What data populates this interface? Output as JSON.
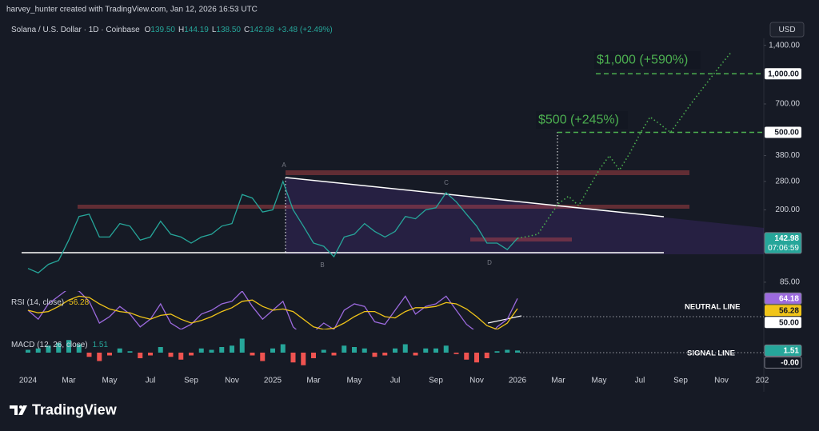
{
  "header": {
    "credit": "harvey_hunter created with TradingView.com, Jan 12, 2026 16:53 UTC",
    "currency": "USD"
  },
  "footer": {
    "logo": "TradingView"
  },
  "chart_data": [
    {
      "type": "line",
      "title": "Solana / U.S. Dollar · 1D · Coinbase",
      "ohlc": [
        {
          "label": "O",
          "value": "139.50"
        },
        {
          "label": "H",
          "value": "144.19"
        },
        {
          "label": "L",
          "value": "138.50"
        },
        {
          "label": "C",
          "value": "142.98"
        }
      ],
      "change": "+3.48 (+2.49%)",
      "log": true,
      "grid": false,
      "categories": [
        "2024",
        null,
        null,
        null,
        "Mar",
        null,
        null,
        null,
        "May",
        null,
        null,
        null,
        "Jul",
        null,
        null,
        null,
        "Sep",
        null,
        null,
        null,
        "Nov",
        null,
        null,
        null,
        "2025",
        null,
        null,
        null,
        "Mar",
        null,
        null,
        null,
        "May",
        null,
        null,
        null,
        "Jul",
        null,
        null,
        null,
        "Sep",
        null,
        null,
        null,
        "Nov",
        null,
        null,
        null,
        "2026",
        null,
        null,
        null,
        "Mar",
        null,
        null,
        null,
        "May",
        null,
        null,
        null,
        "Jul",
        null,
        null,
        null,
        "Sep",
        null,
        null,
        null,
        "Nov",
        null,
        null,
        null,
        "202"
      ],
      "ylim": [
        78,
        1520
      ],
      "yticks": [
        {
          "value": 85,
          "label": "85.00"
        },
        {
          "value": 200,
          "label": "200.00"
        },
        {
          "value": 280,
          "label": "280.00"
        },
        {
          "value": 380,
          "label": "380.00"
        },
        {
          "value": 700,
          "label": "700.00"
        },
        {
          "value": 1400,
          "label": "1,400.00"
        }
      ],
      "series": [
        {
          "color": "#26a69a",
          "style": "solid",
          "values": [
            100,
            95,
            105,
            110,
            140,
            185,
            190,
            145,
            145,
            170,
            165,
            140,
            145,
            175,
            150,
            145,
            135,
            145,
            150,
            165,
            170,
            240,
            230,
            195,
            200,
            280,
            200,
            165,
            135,
            130,
            115,
            145,
            150,
            170,
            155,
            145,
            155,
            185,
            180,
            200,
            205,
            245,
            220,
            190,
            165,
            135,
            135,
            125,
            142.98,
            null,
            null,
            null,
            null,
            null,
            null,
            null,
            null,
            null,
            null,
            null,
            null,
            null,
            null,
            null,
            null,
            null,
            null,
            null,
            null,
            null,
            null,
            null,
            null
          ]
        },
        {
          "color": "#4caf50",
          "style": "dotted",
          "values": [
            null,
            null,
            null,
            null,
            null,
            null,
            null,
            null,
            null,
            null,
            null,
            null,
            null,
            null,
            null,
            null,
            null,
            null,
            null,
            null,
            null,
            null,
            null,
            null,
            null,
            null,
            null,
            null,
            null,
            null,
            null,
            null,
            null,
            null,
            null,
            null,
            null,
            null,
            null,
            null,
            null,
            null,
            null,
            null,
            null,
            null,
            null,
            null,
            142.98,
            146,
            150,
            180,
            215,
            235,
            210,
            260,
            320,
            380,
            320,
            390,
            490,
            600,
            550,
            500,
            590,
            700,
            820,
            960,
            1120,
            1300,
            null,
            null,
            null
          ]
        }
      ],
      "value_tags": [
        {
          "value": 1000,
          "label": "1,000.00",
          "color": "#ffffff",
          "line": "dashed"
        },
        {
          "value": 500,
          "label": "500.00",
          "color": "#ffffff",
          "line": "dashed"
        },
        {
          "value": 142.98,
          "label": "142.98",
          "sublabel": "07:06:59",
          "color": "#26a69a"
        }
      ],
      "annotations": [
        "$1,000 (+590%)",
        "$500 (+245%)"
      ],
      "pivots": [
        "A",
        "B",
        "C",
        "D"
      ]
    },
    {
      "type": "line",
      "title": "RSI (14, close)",
      "ylim": [
        40,
        70
      ],
      "series": [
        {
          "color": "#9c6ade",
          "style": "solid",
          "values": [
            55,
            48,
            60,
            66,
            72,
            70,
            62,
            45,
            50,
            58,
            52,
            42,
            48,
            60,
            45,
            40,
            44,
            52,
            55,
            60,
            62,
            70,
            58,
            48,
            55,
            62,
            42,
            35,
            38,
            45,
            40,
            55,
            60,
            58,
            46,
            44,
            55,
            66,
            52,
            58,
            60,
            66,
            55,
            44,
            38,
            32,
            42,
            48,
            64.18,
            null,
            null,
            null,
            null,
            null,
            null,
            null,
            null,
            null,
            null,
            null,
            null,
            null,
            null,
            null,
            null,
            null,
            null,
            null,
            null,
            null,
            null,
            null,
            null
          ]
        },
        {
          "color": "#f0c419",
          "style": "solid",
          "values": [
            55,
            53,
            54,
            58,
            63,
            66,
            65,
            60,
            56,
            54,
            53,
            50,
            48,
            51,
            52,
            48,
            45,
            47,
            50,
            54,
            57,
            62,
            63,
            58,
            55,
            56,
            54,
            48,
            42,
            40,
            41,
            45,
            50,
            54,
            54,
            50,
            49,
            54,
            57,
            57,
            58,
            61,
            60,
            56,
            50,
            43,
            40,
            45,
            56.28,
            null,
            null,
            null,
            null,
            null,
            null,
            null,
            null,
            null,
            null,
            null,
            null,
            null,
            null,
            null,
            null,
            null,
            null,
            null,
            null,
            null,
            null,
            null,
            null
          ]
        }
      ],
      "value_tags": [
        {
          "value": 64.18,
          "label": "64.18",
          "color": "#9c6ade"
        },
        {
          "value": 56.28,
          "label": "56.28",
          "color": "#f0c419"
        },
        {
          "value": 50,
          "label": "50.00",
          "color": "#ffffff",
          "line": "dotted"
        }
      ],
      "legend_tag": 1,
      "annotations": [
        "NEUTRAL LINE"
      ]
    },
    {
      "type": "bar",
      "title": "MACD (12, 26, close)",
      "ylim": [
        -12,
        12
      ],
      "colors": {
        "up": "#26a69a",
        "down": "#ef5350"
      },
      "values": [
        2,
        3,
        5,
        7,
        9,
        6,
        -3,
        -6,
        -2,
        3,
        1,
        -4,
        -2,
        4,
        -3,
        -5,
        -2,
        3,
        2,
        4,
        5,
        10,
        -2,
        -6,
        3,
        6,
        -7,
        -9,
        -4,
        2,
        -2,
        5,
        4,
        3,
        -3,
        -2,
        3,
        6,
        -2,
        3,
        3,
        5,
        -1,
        -5,
        -7,
        -4,
        1,
        2,
        1.51,
        null,
        null,
        null,
        null,
        null,
        null,
        null,
        null,
        null,
        null,
        null,
        null,
        null,
        null,
        null,
        null,
        null,
        null,
        null,
        null,
        null,
        null,
        null,
        null
      ],
      "value_tags": [
        {
          "value": 1.51,
          "label": "1.51",
          "color": "#26a69a"
        },
        {
          "value": 0,
          "label": "-0.00",
          "color": "#131722",
          "line": "dotted"
        }
      ],
      "legend_tag": 0,
      "annotations": [
        "SIGNAL LINE"
      ]
    }
  ]
}
